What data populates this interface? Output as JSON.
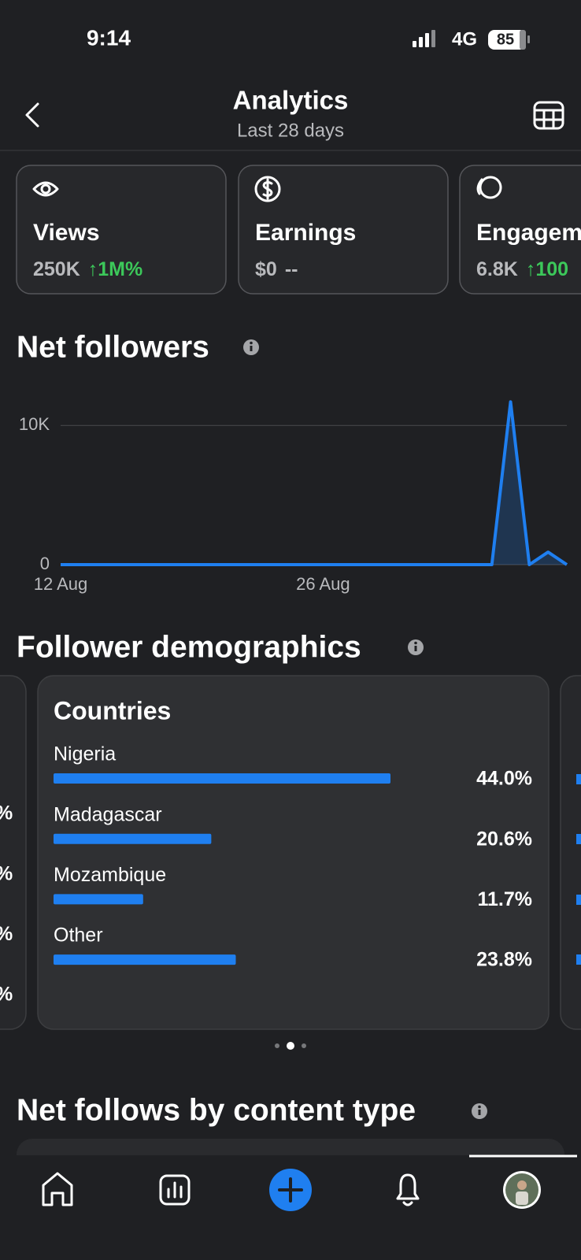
{
  "status_bar": {
    "time": "9:14",
    "network": "4G",
    "battery": "85"
  },
  "header": {
    "title": "Analytics",
    "subtitle": "Last 28 days"
  },
  "metric_cards": [
    {
      "label": "Views",
      "value": "250K",
      "change": "↑1M%"
    },
    {
      "label": "Earnings",
      "value": "$0",
      "change": "--"
    },
    {
      "label": "Engagem",
      "value": "6.8K",
      "change": "↑100"
    }
  ],
  "chart_data": [
    {
      "type": "line",
      "title": "Net followers",
      "categories": [
        "12 Aug",
        null,
        null,
        null,
        null,
        null,
        null,
        null,
        null,
        null,
        null,
        null,
        null,
        null,
        "26 Aug",
        null,
        null,
        null,
        null,
        null,
        null,
        null,
        null,
        null,
        null,
        null,
        null,
        null
      ],
      "values": [
        0,
        0,
        0,
        0,
        0,
        0,
        0,
        0,
        0,
        0,
        0,
        0,
        0,
        0,
        0,
        0,
        0,
        0,
        0,
        0,
        0,
        0,
        0,
        0,
        11700,
        0,
        900,
        0
      ],
      "color": "#1f7ff0",
      "ylim": [
        0,
        12000
      ],
      "yticks": [
        0,
        {
          "value": 10000,
          "label": "10K"
        }
      ],
      "grid": true
    },
    {
      "type": "bar",
      "orientation": "horizontal",
      "section_title": "Follower demographics",
      "title": "Countries",
      "categories": [
        "Nigeria",
        "Madagascar",
        "Mozambique",
        "Other"
      ],
      "values": [
        44.0,
        20.6,
        11.7,
        23.8
      ],
      "value_labels": [
        "44.0%",
        "20.6%",
        "11.7%",
        "23.8%"
      ],
      "color": "#1f7ff0"
    }
  ],
  "demographics_side_fragments": [
    "%",
    "%",
    "%",
    "%"
  ],
  "content_type": {
    "title": "Net follows by content type"
  }
}
